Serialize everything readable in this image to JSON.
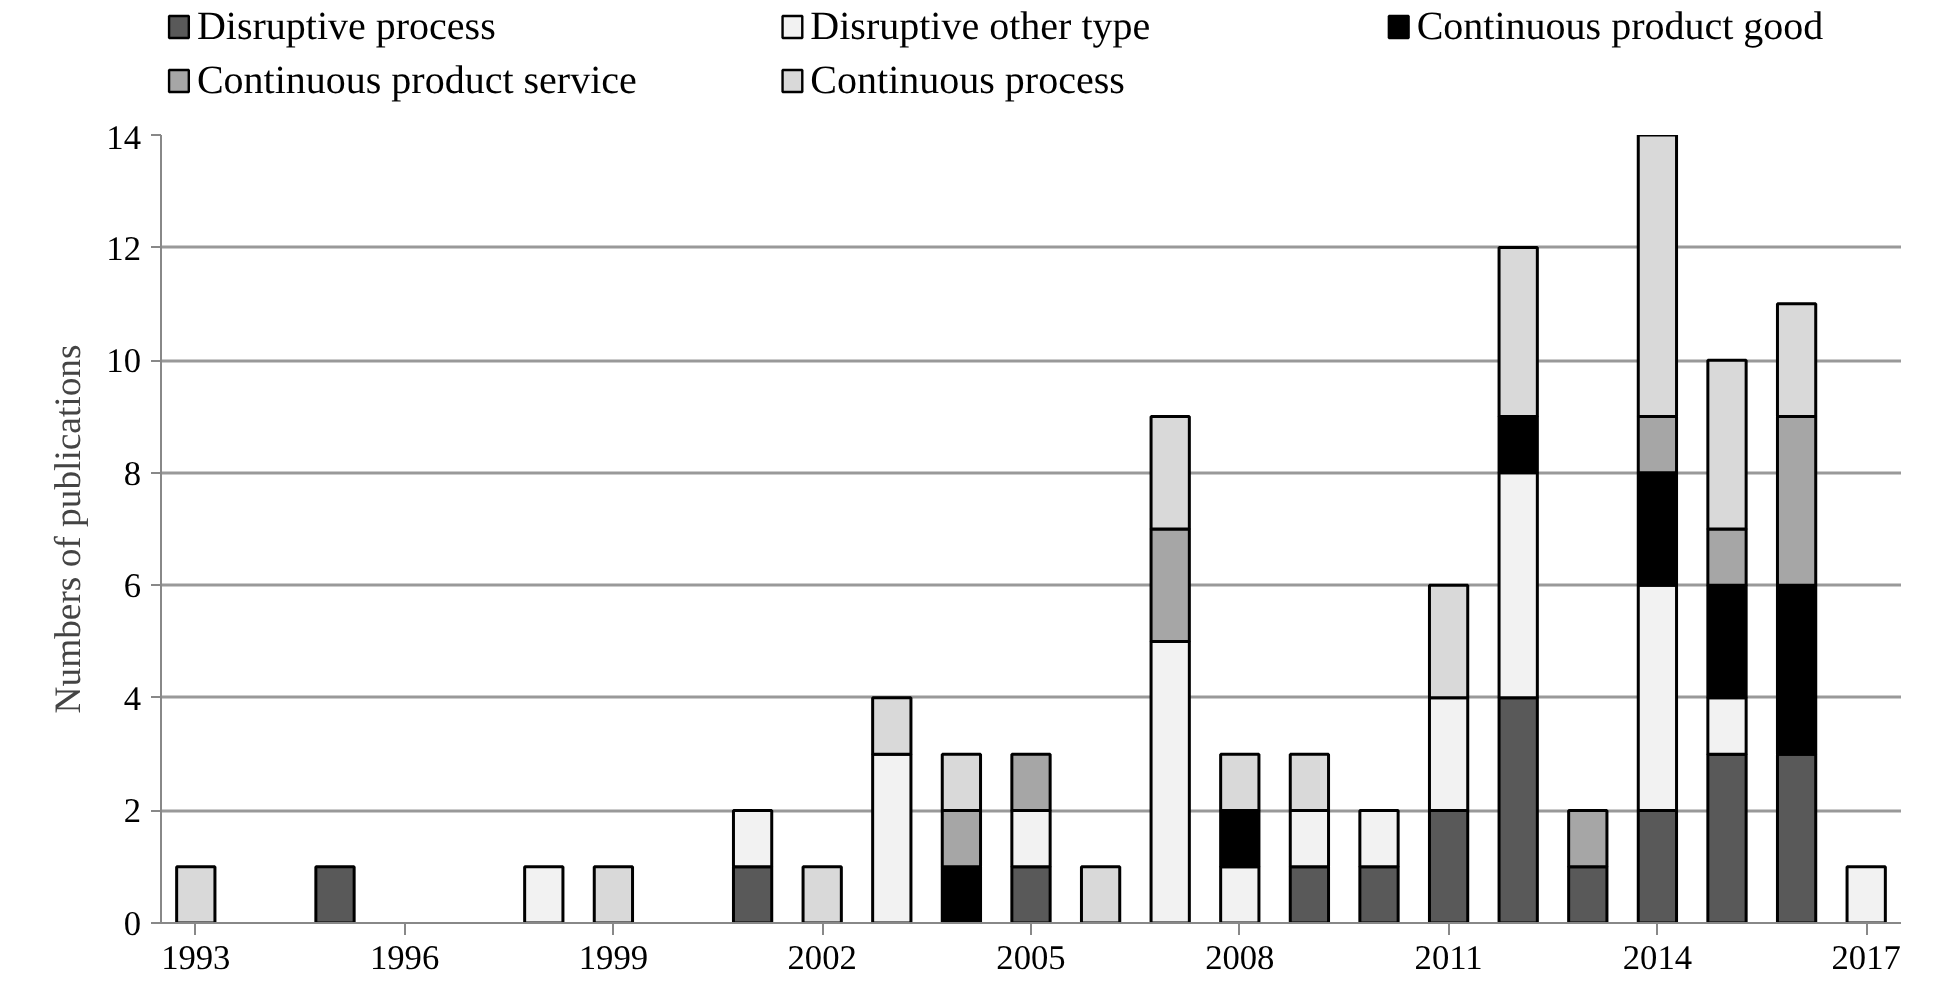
{
  "chart_data": {
    "type": "bar",
    "stacked": true,
    "ylabel": "Numbers of publications",
    "x": [
      1993,
      1994,
      1995,
      1996,
      1997,
      1998,
      1999,
      2000,
      2001,
      2002,
      2003,
      2004,
      2005,
      2006,
      2007,
      2008,
      2009,
      2010,
      2011,
      2012,
      2013,
      2014,
      2015,
      2016,
      2017
    ],
    "xlim": [
      1992.5,
      2017.5
    ],
    "xticks": [
      1993,
      1996,
      1999,
      2002,
      2005,
      2008,
      2011,
      2014,
      2017
    ],
    "ylim": [
      0,
      14
    ],
    "yticks": [
      0,
      2,
      4,
      6,
      8,
      10,
      12,
      14
    ],
    "grid": "y",
    "legend": "top",
    "series": [
      {
        "name": "Disruptive process",
        "color": "#595959",
        "values": [
          0,
          0,
          1,
          0,
          0,
          0,
          0,
          0,
          1,
          0,
          0,
          0,
          1,
          0,
          0,
          0,
          1,
          1,
          2,
          4,
          1,
          2,
          3,
          3,
          0
        ]
      },
      {
        "name": "Disruptive other type",
        "color": "#f2f2f2",
        "values": [
          0,
          0,
          0,
          0,
          0,
          1,
          0,
          0,
          1,
          0,
          3,
          0,
          1,
          0,
          5,
          1,
          1,
          1,
          2,
          4,
          0,
          4,
          1,
          0,
          1
        ]
      },
      {
        "name": "Continuous product good",
        "color": "#000000",
        "values": [
          0,
          0,
          0,
          0,
          0,
          0,
          0,
          0,
          0,
          0,
          0,
          1,
          0,
          0,
          0,
          1,
          0,
          0,
          0,
          1,
          0,
          2,
          2,
          3,
          0
        ]
      },
      {
        "name": "Continuous product service",
        "color": "#a6a6a6",
        "values": [
          0,
          0,
          0,
          0,
          0,
          0,
          0,
          0,
          0,
          0,
          0,
          1,
          1,
          0,
          2,
          0,
          0,
          0,
          0,
          0,
          1,
          1,
          1,
          3,
          0
        ]
      },
      {
        "name": "Continuous process",
        "color": "#d9d9d9",
        "values": [
          1,
          0,
          0,
          0,
          0,
          0,
          1,
          0,
          0,
          1,
          1,
          1,
          0,
          1,
          2,
          1,
          1,
          0,
          2,
          3,
          0,
          5,
          3,
          2,
          0
        ]
      }
    ]
  }
}
